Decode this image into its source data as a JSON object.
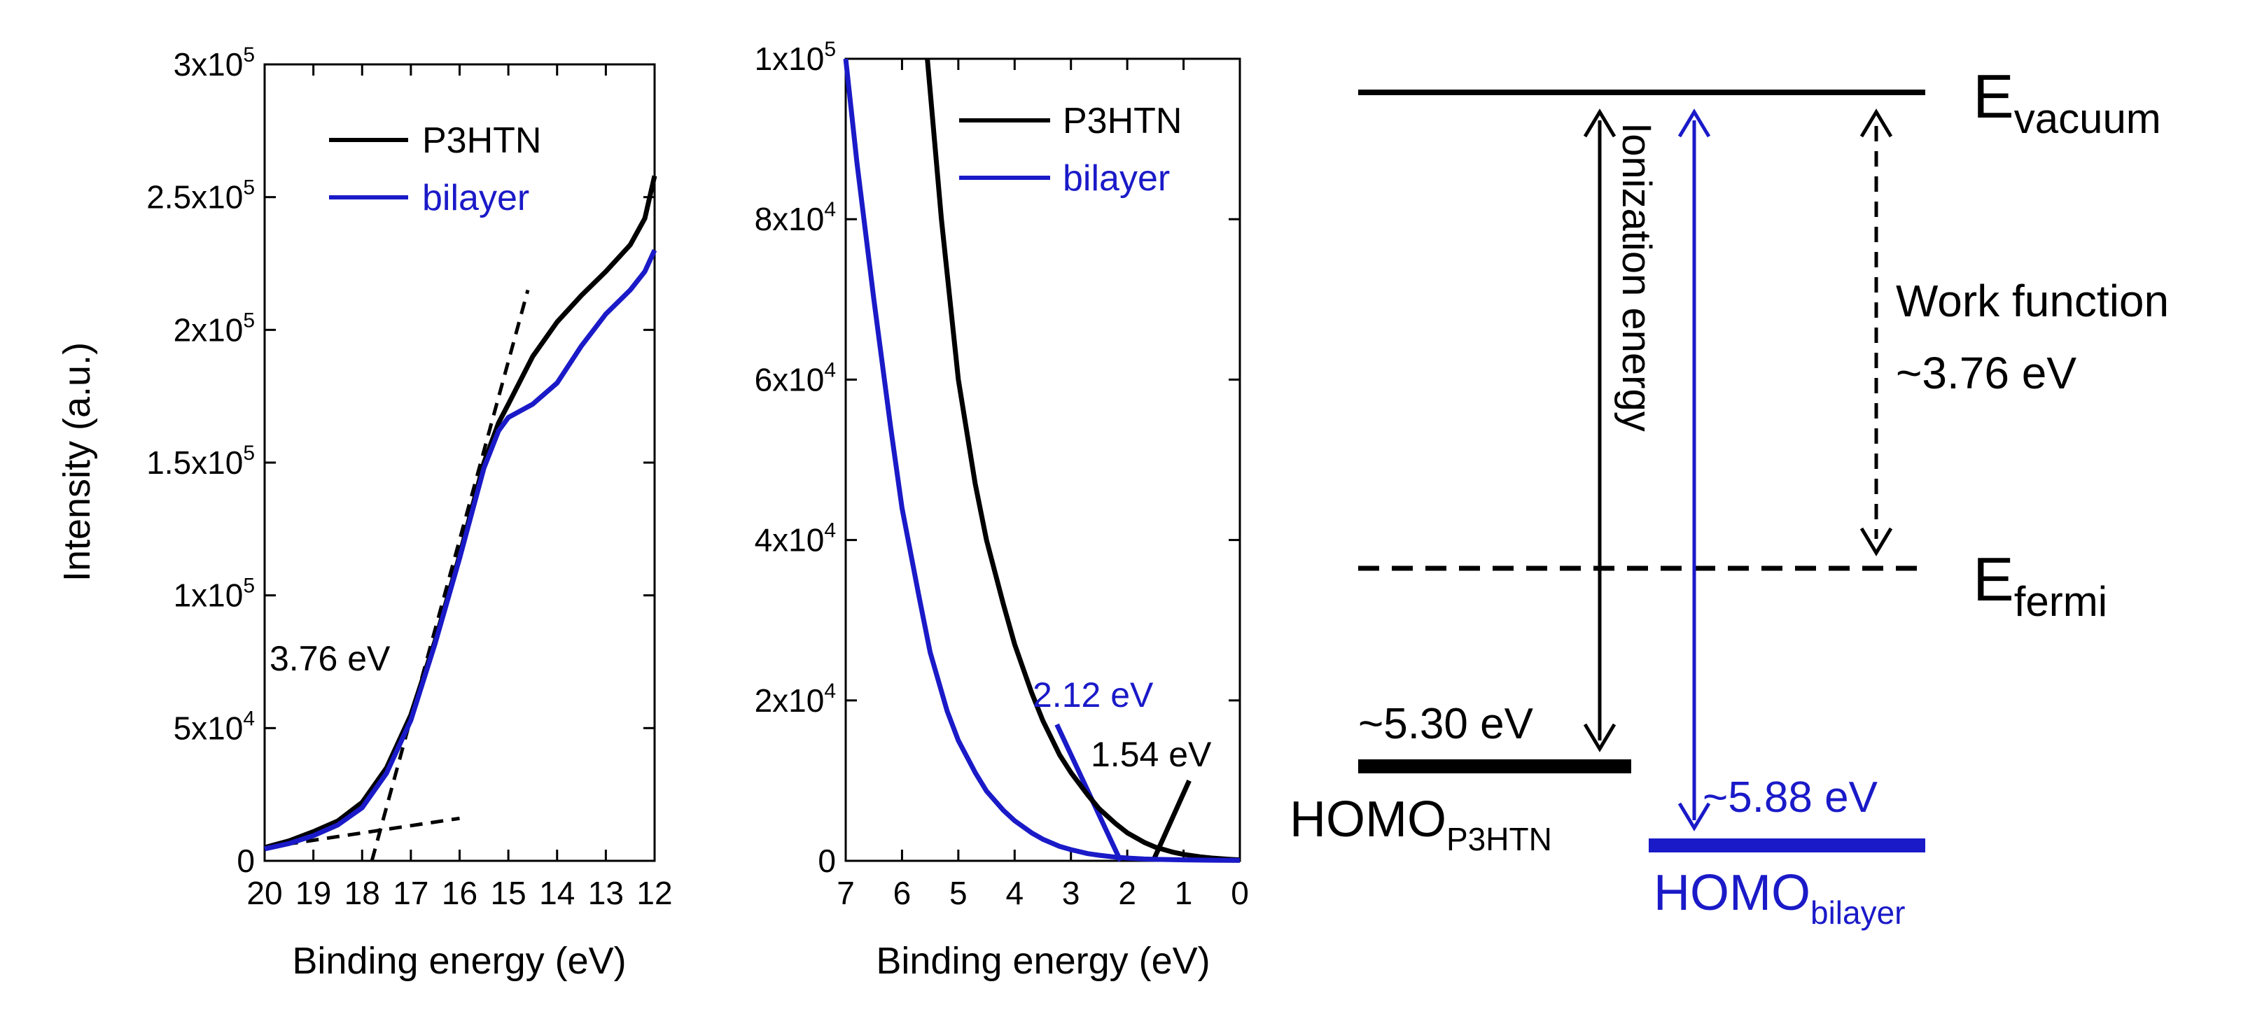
{
  "chart_data": [
    {
      "type": "line",
      "panel": "left",
      "ylabel": "Intensity (a.u.)",
      "xlabel": "Binding energy (eV)",
      "xlim": [
        20,
        12
      ],
      "ylim": [
        0,
        300000
      ],
      "xticks": [
        20,
        19,
        18,
        17,
        16,
        15,
        14,
        13,
        12
      ],
      "yticks": [
        {
          "mant": "",
          "exp": "",
          "text": "0",
          "value": 0
        },
        {
          "mant": "5x10",
          "exp": "4",
          "value": 50000
        },
        {
          "mant": "1x10",
          "exp": "5",
          "value": 100000
        },
        {
          "mant": "1.5x10",
          "exp": "5",
          "value": 150000
        },
        {
          "mant": "2x10",
          "exp": "5",
          "value": 200000
        },
        {
          "mant": "2.5x10",
          "exp": "5",
          "value": 250000
        },
        {
          "mant": "3x10",
          "exp": "5",
          "value": 300000
        }
      ],
      "legend": [
        "P3HTN",
        "bilayer"
      ],
      "legend_placement": "top-center",
      "series": [
        {
          "name": "P3HTN",
          "color": "#000000",
          "x": [
            20,
            19.5,
            19,
            18.5,
            18,
            17.5,
            17,
            16.5,
            16,
            15.5,
            15.2,
            15,
            14.5,
            14,
            13.5,
            13,
            12.5,
            12.2,
            12
          ],
          "y": [
            5000,
            7500,
            11000,
            15000,
            22000,
            35000,
            55000,
            83000,
            115000,
            150000,
            165000,
            172000,
            190000,
            203000,
            213000,
            222000,
            232000,
            242000,
            258000
          ]
        },
        {
          "name": "bilayer",
          "color": "#1a1ac8",
          "x": [
            20,
            19.5,
            19,
            18.5,
            18,
            17.5,
            17,
            16.5,
            16,
            15.5,
            15.2,
            15,
            14.7,
            14.5,
            14,
            13.5,
            13,
            12.5,
            12.2,
            12
          ],
          "y": [
            4500,
            6500,
            9500,
            13500,
            20000,
            33000,
            53000,
            82000,
            114000,
            148000,
            162000,
            167000,
            170000,
            172000,
            180000,
            194000,
            206000,
            215000,
            222000,
            230000
          ]
        }
      ],
      "fit_lines": [
        {
          "x": [
            17.8,
            14.6
          ],
          "y": [
            0,
            215000
          ]
        },
        {
          "x": [
            20,
            16
          ],
          "y": [
            5000,
            16000
          ]
        }
      ],
      "annotations": [
        {
          "text": "3.76 eV",
          "x": 18.0,
          "y": 72000
        }
      ]
    },
    {
      "type": "line",
      "panel": "middle",
      "xlabel": "Binding energy (eV)",
      "xlim": [
        7,
        0
      ],
      "ylim": [
        0,
        100000
      ],
      "xticks": [
        7,
        6,
        5,
        4,
        3,
        2,
        1,
        0
      ],
      "yticks": [
        {
          "mant": "",
          "exp": "",
          "text": "0",
          "value": 0
        },
        {
          "mant": "2x10",
          "exp": "4",
          "value": 20000
        },
        {
          "mant": "4x10",
          "exp": "4",
          "value": 40000
        },
        {
          "mant": "6x10",
          "exp": "4",
          "value": 60000
        },
        {
          "mant": "8x10",
          "exp": "4",
          "value": 80000
        },
        {
          "mant": "1x10",
          "exp": "5",
          "value": 100000
        }
      ],
      "legend": [
        "P3HTN",
        "bilayer"
      ],
      "legend_placement": "top-right",
      "series": [
        {
          "name": "P3HTN",
          "color": "#000000",
          "x": [
            5.55,
            5.3,
            5.0,
            4.7,
            4.5,
            4.2,
            4.0,
            3.7,
            3.5,
            3.2,
            3.0,
            2.7,
            2.5,
            2.2,
            2.0,
            1.7,
            1.5,
            1.2,
            1.0,
            0.7,
            0.5,
            0.2,
            0
          ],
          "y": [
            100000,
            80000,
            60000,
            47000,
            40000,
            32000,
            27000,
            21000,
            17500,
            13200,
            11000,
            8200,
            6500,
            4600,
            3500,
            2300,
            1700,
            1100,
            800,
            500,
            350,
            200,
            120
          ]
        },
        {
          "name": "bilayer",
          "color": "#1a1ac8",
          "x": [
            7.0,
            6.8,
            6.5,
            6.2,
            6.0,
            5.7,
            5.5,
            5.2,
            5.0,
            4.7,
            4.5,
            4.2,
            4.0,
            3.7,
            3.5,
            3.2,
            3.0,
            2.7,
            2.5,
            2.2,
            2.0,
            1.7,
            1.5,
            1.0,
            0.5,
            0
          ],
          "y": [
            100000,
            87000,
            70000,
            54000,
            44000,
            33000,
            26000,
            18700,
            15000,
            11000,
            8700,
            6300,
            5000,
            3500,
            2700,
            1800,
            1400,
            900,
            700,
            450,
            350,
            230,
            180,
            120,
            80,
            50
          ]
        }
      ],
      "fit_lines": [
        {
          "x": [
            3.25,
            2.12
          ],
          "y": [
            17000,
            0
          ],
          "color": "#1a1ac8"
        },
        {
          "x": [
            0.9,
            1.54
          ],
          "y": [
            10000,
            0
          ],
          "color": "#000000"
        }
      ],
      "annotations": [
        {
          "text": "2.12 eV",
          "x": 2.6,
          "y": 21500,
          "color": "#1a1ac8"
        },
        {
          "text": "1.54 eV",
          "x": 1.4,
          "y": 13000,
          "color": "#000000"
        }
      ]
    }
  ],
  "diagram": {
    "e_vacuum": {
      "main": "E",
      "sub": "vacuum"
    },
    "e_fermi": {
      "main": "E",
      "sub": "fermi"
    },
    "ionization_label": "Ionization energy",
    "work_function_line1": "Work function",
    "work_function_line2": "~3.76 eV",
    "homo_p3htn_value": "~5.30 eV",
    "homo_p3htn_label": {
      "main": "HOMO",
      "sub": "P3HTN"
    },
    "homo_bilayer_value": "~5.88 eV",
    "homo_bilayer_label": {
      "main": "HOMO",
      "sub": "bilayer"
    },
    "colors": {
      "black": "#000000",
      "blue": "#1a1ac8"
    }
  }
}
